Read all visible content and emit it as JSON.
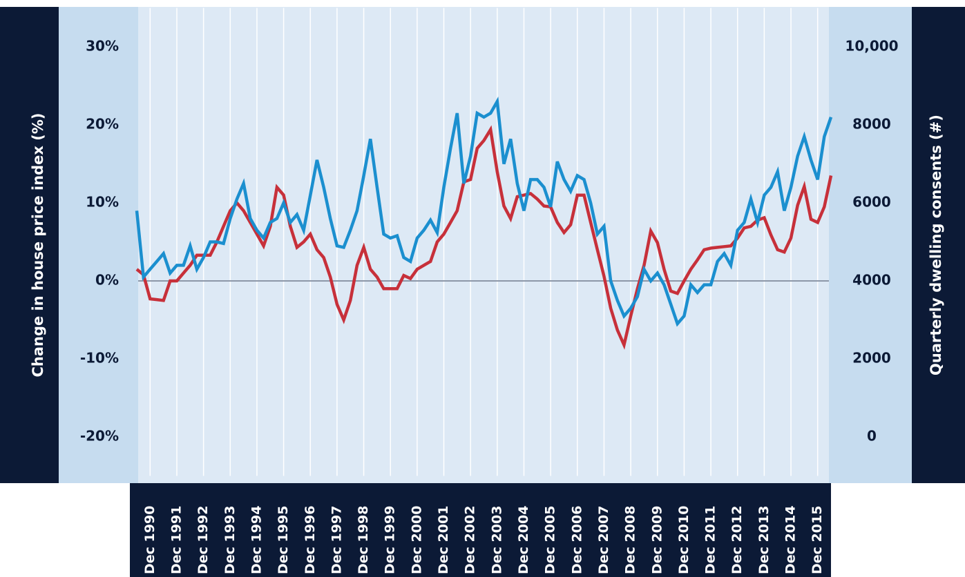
{
  "chart_data": {
    "type": "line",
    "y_label": "Change in house price index (%)",
    "y2_label": "Quarterly dwelling consents (#)",
    "categories": [
      null,
      null,
      "Dec 1990",
      null,
      null,
      null,
      "Dec 1991",
      null,
      null,
      null,
      "Dec 1992",
      null,
      null,
      null,
      "Dec 1993",
      null,
      null,
      null,
      "Dec 1994",
      null,
      null,
      null,
      "Dec 1995",
      null,
      null,
      null,
      "Dec 1996",
      null,
      null,
      null,
      "Dec 1997",
      null,
      null,
      null,
      "Dec 1998",
      null,
      null,
      null,
      "Dec 1999",
      null,
      null,
      null,
      "Dec 2000",
      null,
      null,
      null,
      "Dec 2001",
      null,
      null,
      null,
      "Dec 2002",
      null,
      null,
      null,
      "Dec 2003",
      null,
      null,
      null,
      "Dec 2004",
      null,
      null,
      null,
      "Dec 2005",
      null,
      null,
      null,
      "Dec 2006",
      null,
      null,
      null,
      "Dec 2007",
      null,
      null,
      null,
      "Dec 2008",
      null,
      null,
      null,
      "Dec 2009",
      null,
      null,
      null,
      "Dec 2010",
      null,
      null,
      null,
      "Dec 2011",
      null,
      null,
      null,
      "Dec 2012",
      null,
      null,
      null,
      "Dec 2013",
      null,
      null,
      null,
      "Dec 2014",
      null,
      null,
      null,
      "Dec 2015",
      null,
      null
    ],
    "series": [
      {
        "color": "#1b8fcf",
        "values": [
          9,
          0.5,
          1.5,
          2.5,
          3.5,
          1,
          2,
          2,
          4.5,
          1.5,
          3,
          5,
          5,
          4.8,
          8,
          10.5,
          12.5,
          8,
          6.5,
          5.5,
          7.5,
          8,
          10,
          7.5,
          8.5,
          6.5,
          11,
          15.5,
          12,
          8,
          4.5,
          4.3,
          6.5,
          9,
          13.5,
          18.2,
          12,
          6,
          5.5,
          5.8,
          3,
          2.5,
          5.5,
          6.5,
          7.8,
          6.2,
          12,
          17,
          21.5,
          12.5,
          16,
          21.5,
          21,
          21.5,
          23,
          15,
          18.2,
          12.5,
          9,
          13,
          13,
          12,
          9.5,
          15.3,
          13,
          11.5,
          13.5,
          13,
          10,
          6,
          7,
          0,
          -2.5,
          -4.5,
          -3.5,
          -2,
          1.5,
          0,
          1,
          -0.5,
          -3,
          -5.5,
          -4.5,
          -0.5,
          -1.5,
          -0.5,
          -0.5,
          2.5,
          3.5,
          2,
          6.5,
          7.5,
          10.5,
          7.5,
          11,
          12,
          14,
          9,
          12,
          16,
          18.5,
          15.5,
          13,
          18.5,
          21
        ]
      },
      {
        "color": "#c7303a",
        "axis": "y2",
        "values": [
          4300,
          4160,
          3540,
          3520,
          3500,
          4000,
          4000,
          4200,
          4400,
          4660,
          4660,
          4660,
          5000,
          5400,
          5800,
          6000,
          5800,
          5500,
          5200,
          4900,
          5400,
          6400,
          6200,
          5400,
          4860,
          5000,
          5200,
          4800,
          4600,
          4100,
          3400,
          3000,
          3500,
          4400,
          4860,
          4300,
          4100,
          3800,
          3800,
          3800,
          4140,
          4060,
          4300,
          4400,
          4500,
          5000,
          5200,
          5500,
          5800,
          6540,
          6600,
          7400,
          7600,
          7880,
          6800,
          5920,
          5600,
          6160,
          6200,
          6240,
          6100,
          5920,
          5900,
          5500,
          5240,
          5440,
          6200,
          6200,
          5500,
          4800,
          4120,
          3300,
          2740,
          2360,
          3100,
          3800,
          4400,
          5280,
          4980,
          4300,
          3740,
          3680,
          4000,
          4300,
          4540,
          4800,
          4840,
          4860,
          4880,
          4900,
          5100,
          5360,
          5400,
          5560,
          5620,
          5180,
          4800,
          4740,
          5100,
          5940,
          6420,
          5580,
          5500,
          5900,
          6700
        ]
      }
    ],
    "ylim": [
      -25,
      35
    ],
    "yticks": [
      {
        "value": -20,
        "label": "-20%"
      },
      {
        "value": -10,
        "label": "-10%"
      },
      {
        "value": 0,
        "label": "0%"
      },
      {
        "value": 10,
        "label": "10%"
      },
      {
        "value": 20,
        "label": "20%"
      },
      {
        "value": 30,
        "label": "30%"
      }
    ],
    "y2lim": [
      -1000,
      11000
    ],
    "y2ticks": [
      0,
      2000,
      4000,
      6000,
      8000,
      {
        "value": 10000,
        "label": "10,000"
      }
    ]
  }
}
